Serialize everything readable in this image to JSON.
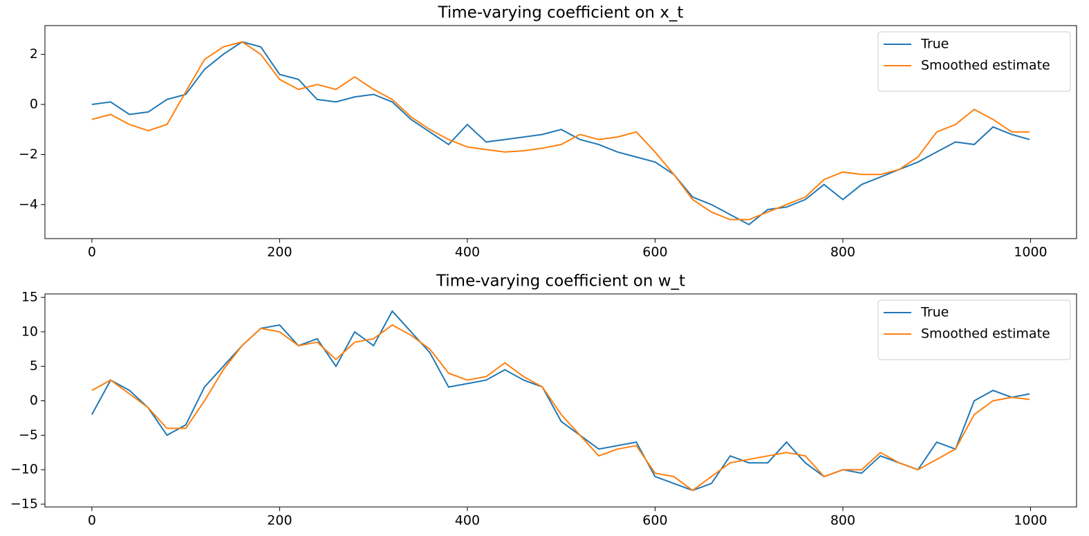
{
  "chart_data": [
    {
      "type": "line",
      "title": "Time-varying coefficient on x_t",
      "x": [
        0,
        20,
        40,
        60,
        80,
        100,
        120,
        140,
        160,
        180,
        200,
        220,
        240,
        260,
        280,
        300,
        320,
        340,
        360,
        380,
        400,
        420,
        440,
        460,
        480,
        500,
        520,
        540,
        560,
        580,
        600,
        620,
        640,
        660,
        680,
        700,
        720,
        740,
        760,
        780,
        800,
        820,
        840,
        860,
        880,
        900,
        920,
        940,
        960,
        980,
        999
      ],
      "series": [
        {
          "name": "True",
          "color": "#1f77b4",
          "values": [
            0,
            0.1,
            -0.4,
            -0.3,
            0.2,
            0.4,
            1.4,
            2.0,
            2.5,
            2.3,
            1.2,
            1.0,
            0.2,
            0.1,
            0.3,
            0.4,
            0.1,
            -0.6,
            -1.1,
            -1.6,
            -0.8,
            -1.5,
            -1.4,
            -1.3,
            -1.2,
            -1.0,
            -1.4,
            -1.6,
            -1.9,
            -2.1,
            -2.3,
            -2.8,
            -3.7,
            -4.0,
            -4.4,
            -4.8,
            -4.2,
            -4.1,
            -3.8,
            -3.2,
            -3.8,
            -3.2,
            -2.9,
            -2.6,
            -2.3,
            -1.9,
            -1.5,
            -1.6,
            -0.9,
            -1.2,
            -1.4
          ]
        },
        {
          "name": "Smoothed estimate",
          "color": "#ff7f0e",
          "values": [
            -0.6,
            -0.4,
            -0.8,
            -1.05,
            -0.8,
            0.5,
            1.8,
            2.3,
            2.5,
            2.0,
            1.0,
            0.6,
            0.8,
            0.6,
            1.1,
            0.6,
            0.2,
            -0.5,
            -1.0,
            -1.4,
            -1.7,
            -1.8,
            -1.9,
            -1.85,
            -1.75,
            -1.6,
            -1.2,
            -1.4,
            -1.3,
            -1.1,
            -1.9,
            -2.8,
            -3.8,
            -4.3,
            -4.6,
            -4.6,
            -4.3,
            -4.0,
            -3.7,
            -3.0,
            -2.7,
            -2.8,
            -2.8,
            -2.6,
            -2.1,
            -1.1,
            -0.8,
            -0.2,
            -0.6,
            -1.1,
            -1.1
          ]
        }
      ],
      "xlim": [
        -50,
        1049
      ],
      "ylim": [
        -5.36,
        3.15
      ],
      "xticks": [
        0,
        200,
        400,
        600,
        800,
        1000
      ],
      "yticks": [
        {
          "value": -4,
          "label": "−4"
        },
        {
          "value": -2,
          "label": "−2"
        },
        0,
        2
      ],
      "legend": "upper right"
    },
    {
      "type": "line",
      "title": "Time-varying coefficient on w_t",
      "x": [
        0,
        20,
        40,
        60,
        80,
        100,
        120,
        140,
        160,
        180,
        200,
        220,
        240,
        260,
        280,
        300,
        320,
        340,
        360,
        380,
        400,
        420,
        440,
        460,
        480,
        500,
        520,
        540,
        560,
        580,
        600,
        620,
        640,
        660,
        680,
        700,
        720,
        740,
        760,
        780,
        800,
        820,
        840,
        860,
        880,
        900,
        920,
        940,
        960,
        980,
        999
      ],
      "series": [
        {
          "name": "True",
          "color": "#1f77b4",
          "values": [
            -2,
            3,
            1.5,
            -1,
            -5,
            -3.5,
            2,
            5,
            8,
            10.5,
            11,
            8,
            9,
            5,
            10,
            8,
            13,
            10,
            7,
            2,
            2.5,
            3,
            4.5,
            3,
            2,
            -3,
            -5,
            -7,
            -6.5,
            -6,
            -11,
            -12,
            -13,
            -12,
            -8,
            -9,
            -9,
            -6,
            -9,
            -11,
            -10,
            -10.5,
            -8,
            -9,
            -10,
            -6,
            -7,
            0,
            1.5,
            0.5,
            1
          ]
        },
        {
          "name": "Smoothed estimate",
          "color": "#ff7f0e",
          "values": [
            1.5,
            3,
            1,
            -1,
            -4,
            -4,
            0,
            4.5,
            8,
            10.5,
            10,
            8,
            8.5,
            6,
            8.5,
            9,
            11,
            9.5,
            7.5,
            4,
            3,
            3.5,
            5.5,
            3.5,
            2,
            -2,
            -5,
            -8,
            -7,
            -6.5,
            -10.5,
            -11,
            -13,
            -11,
            -9,
            -8.5,
            -8,
            -7.5,
            -8,
            -11,
            -10,
            -10,
            -7.5,
            -9,
            -10,
            -8.5,
            -7,
            -2,
            0,
            0.5,
            0.2
          ]
        }
      ],
      "xlim": [
        -50,
        1049
      ],
      "ylim": [
        -15.4,
        15.5
      ],
      "xticks": [
        0,
        200,
        400,
        600,
        800,
        1000
      ],
      "yticks": [
        {
          "value": -15,
          "label": "−15"
        },
        {
          "value": -10,
          "label": "−10"
        },
        {
          "value": -5,
          "label": "−5"
        },
        0,
        5,
        10,
        15
      ],
      "legend": "upper right"
    }
  ]
}
